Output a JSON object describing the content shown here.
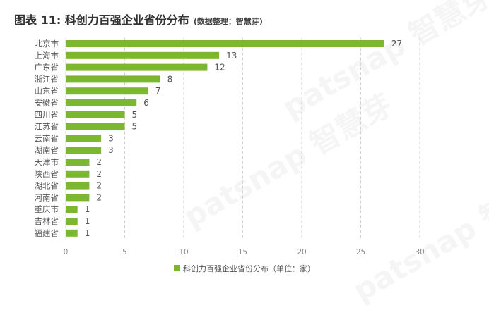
{
  "header": {
    "title": "图表 11: 科创力百强企业省份分布",
    "source": "(数据整理：智慧芽)"
  },
  "watermark": {
    "text": "patsnap 智慧芽"
  },
  "chart_data": {
    "type": "bar",
    "orientation": "horizontal",
    "categories": [
      "北京市",
      "上海市",
      "广东省",
      "浙江省",
      "山东省",
      "安徽省",
      "四川省",
      "江苏省",
      "云南省",
      "湖南省",
      "天津市",
      "陕西省",
      "湖北省",
      "河南省",
      "重庆市",
      "吉林省",
      "福建省"
    ],
    "values": [
      27,
      13,
      12,
      8,
      7,
      6,
      5,
      5,
      3,
      3,
      2,
      2,
      2,
      2,
      1,
      1,
      1
    ],
    "series": [
      {
        "name": "科创力百强企业省份分布（单位：家）",
        "values": [
          27,
          13,
          12,
          8,
          7,
          6,
          5,
          5,
          3,
          3,
          2,
          2,
          2,
          2,
          1,
          1,
          1
        ]
      }
    ],
    "xlim": [
      0,
      30
    ],
    "xticks": [
      0,
      5,
      10,
      15,
      20,
      25,
      30
    ],
    "bar_color": "#7cb82f",
    "grid": "vertical-dashed",
    "legend_position": "bottom-center"
  }
}
